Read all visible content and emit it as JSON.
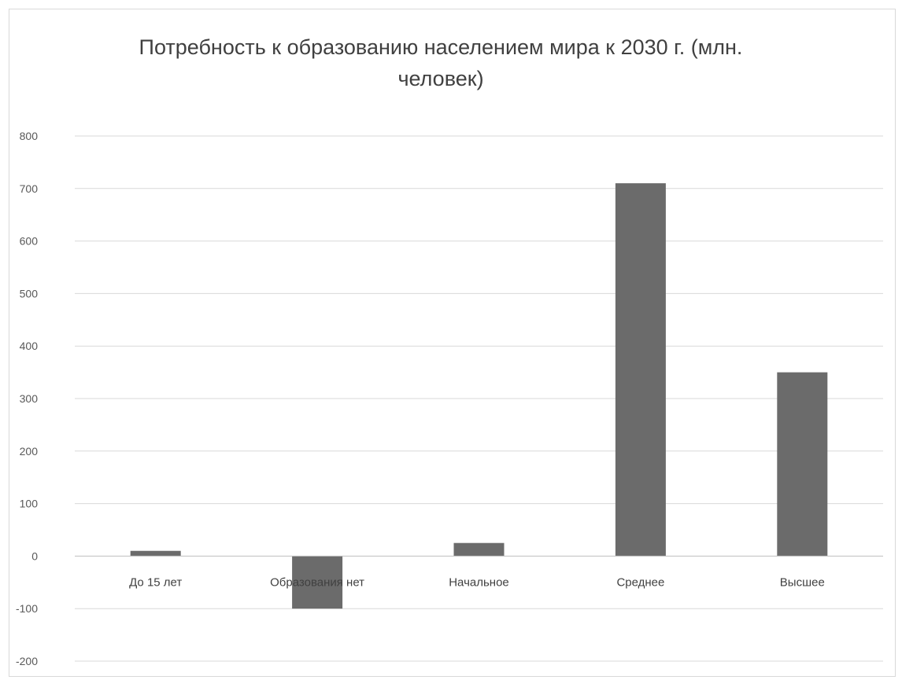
{
  "chart_data": {
    "type": "bar",
    "title": "Потребность к образованию населением мира к 2030 г. (млн. человек)",
    "categories": [
      "До 15 лет",
      "Образования нет",
      "Начальное",
      "Среднее",
      "Высшее"
    ],
    "series": [
      {
        "values": [
          10,
          -100,
          25,
          710,
          350
        ]
      }
    ],
    "ylim": [
      -200,
      800
    ],
    "yticks": [
      800,
      700,
      600,
      500,
      400,
      300,
      200,
      100,
      0,
      -100,
      -200
    ],
    "grid": true,
    "legend": "none",
    "colors": {
      "bar": "#6b6b6b",
      "grid": "#d9d9d9",
      "axis": "#bfbfbf"
    }
  }
}
